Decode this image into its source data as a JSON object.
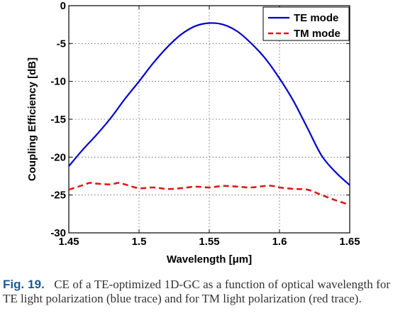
{
  "chart_data": {
    "type": "line",
    "xlabel": "Wavelength [μm]",
    "ylabel": "Coupling Efficiency [dB]",
    "xlim": [
      1.45,
      1.65
    ],
    "ylim": [
      -30,
      0
    ],
    "x_ticks": [
      "1.45",
      "1.5",
      "1.55",
      "1.6",
      "1.65"
    ],
    "y_ticks": [
      "0",
      "-5",
      "-10",
      "-15",
      "-20",
      "-25",
      "-30"
    ],
    "grid": true,
    "legend": "top-right",
    "series": [
      {
        "name": "TE mode",
        "color": "#0000cc",
        "style": "solid",
        "x": [
          1.45,
          1.46,
          1.47,
          1.48,
          1.49,
          1.5,
          1.51,
          1.52,
          1.53,
          1.54,
          1.55,
          1.56,
          1.57,
          1.58,
          1.59,
          1.6,
          1.61,
          1.62,
          1.63,
          1.64,
          1.65
        ],
        "y": [
          -21.2,
          -19.0,
          -17.0,
          -14.8,
          -12.3,
          -10.0,
          -7.6,
          -5.5,
          -3.8,
          -2.7,
          -2.3,
          -2.5,
          -3.4,
          -5.0,
          -7.0,
          -9.6,
          -12.6,
          -16.2,
          -19.8,
          -22.0,
          -23.7
        ]
      },
      {
        "name": "TM mode",
        "color": "#dd1a1a",
        "style": "dashed",
        "x": [
          1.45,
          1.46,
          1.465,
          1.47,
          1.48,
          1.485,
          1.49,
          1.5,
          1.51,
          1.52,
          1.53,
          1.54,
          1.55,
          1.56,
          1.57,
          1.58,
          1.59,
          1.595,
          1.6,
          1.61,
          1.62,
          1.63,
          1.64,
          1.65
        ],
        "y": [
          -24.3,
          -23.7,
          -23.4,
          -23.5,
          -23.6,
          -23.4,
          -23.6,
          -24.1,
          -24.0,
          -24.2,
          -24.1,
          -23.9,
          -24.0,
          -23.8,
          -23.9,
          -24.0,
          -23.8,
          -23.8,
          -24.0,
          -24.2,
          -24.3,
          -25.0,
          -25.7,
          -26.3
        ]
      }
    ]
  },
  "caption": {
    "label": "Fig. 19.",
    "text": "CE of a TE-optimized 1D-GC as a function of optical wavelength for TE light polarization (blue trace) and for TM light polarization (red trace)."
  }
}
